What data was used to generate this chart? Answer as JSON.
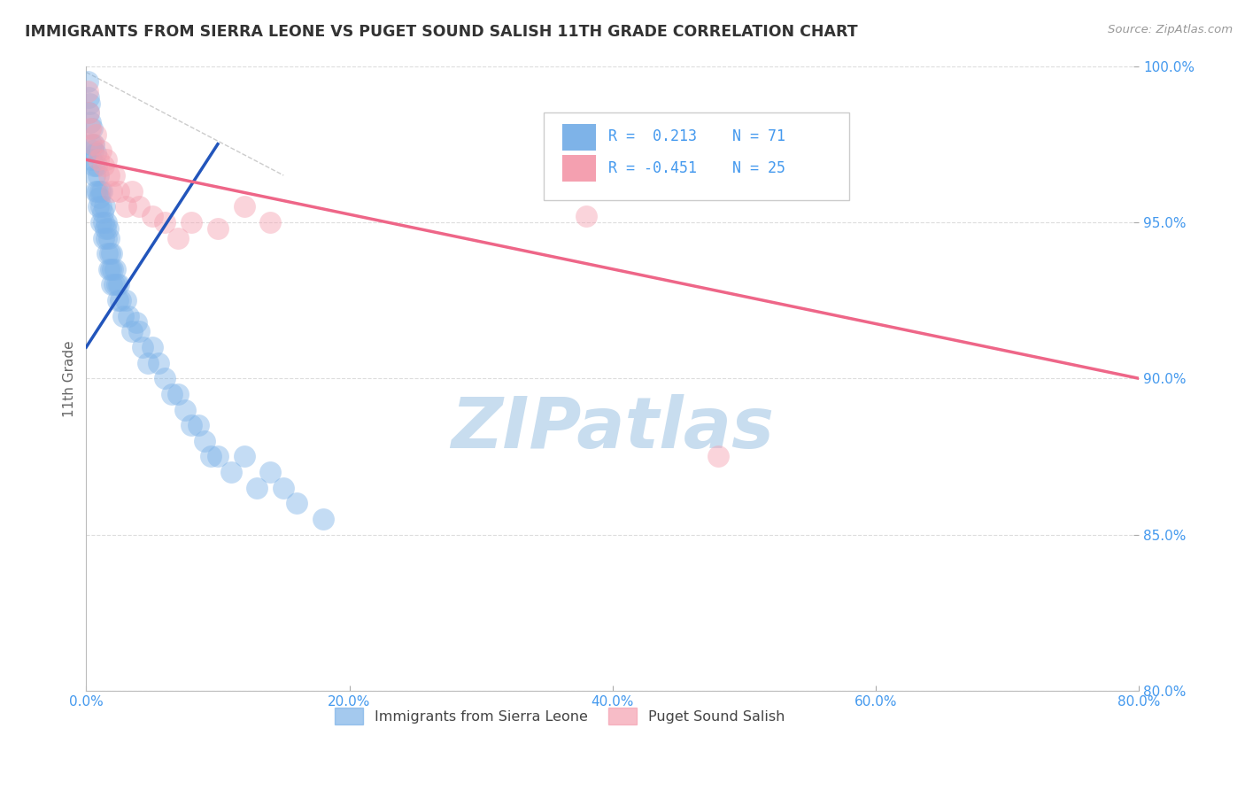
{
  "title": "IMMIGRANTS FROM SIERRA LEONE VS PUGET SOUND SALISH 11TH GRADE CORRELATION CHART",
  "source": "Source: ZipAtlas.com",
  "ylabel": "11th Grade",
  "xlim": [
    0.0,
    80.0
  ],
  "ylim": [
    80.0,
    100.0
  ],
  "xticks": [
    0.0,
    20.0,
    40.0,
    60.0,
    80.0
  ],
  "yticks": [
    80.0,
    85.0,
    90.0,
    95.0,
    100.0
  ],
  "color_blue": "#7EB3E8",
  "color_pink": "#F4A0B0",
  "color_trend_blue": "#2255BB",
  "color_trend_pink": "#EE6688",
  "watermark": "ZIPatlas",
  "watermark_color": "#C8DDEF",
  "background_color": "#FFFFFF",
  "title_color": "#333333",
  "axis_label_color": "#666666",
  "tick_label_color": "#4499EE",
  "grid_color": "#DDDDDD",
  "blue_scatter_x": [
    0.1,
    0.15,
    0.2,
    0.25,
    0.3,
    0.35,
    0.4,
    0.45,
    0.5,
    0.55,
    0.6,
    0.65,
    0.7,
    0.75,
    0.8,
    0.85,
    0.9,
    0.95,
    1.0,
    1.05,
    1.1,
    1.15,
    1.2,
    1.25,
    1.3,
    1.35,
    1.4,
    1.45,
    1.5,
    1.55,
    1.6,
    1.65,
    1.7,
    1.75,
    1.8,
    1.85,
    1.9,
    1.95,
    2.0,
    2.1,
    2.2,
    2.3,
    2.4,
    2.5,
    2.6,
    2.8,
    3.0,
    3.2,
    3.5,
    3.8,
    4.0,
    4.3,
    4.7,
    5.0,
    5.5,
    6.0,
    6.5,
    7.0,
    7.5,
    8.0,
    8.5,
    9.0,
    9.5,
    10.0,
    11.0,
    12.0,
    13.0,
    14.0,
    15.0,
    16.0,
    18.0
  ],
  "blue_scatter_y": [
    99.5,
    99.0,
    98.5,
    98.8,
    98.2,
    97.5,
    97.0,
    98.0,
    97.3,
    96.8,
    97.5,
    96.5,
    96.0,
    97.2,
    96.8,
    96.0,
    95.5,
    96.5,
    95.8,
    96.0,
    95.5,
    95.0,
    96.0,
    95.3,
    95.0,
    94.5,
    95.5,
    94.8,
    95.0,
    94.5,
    94.0,
    94.8,
    93.5,
    94.5,
    94.0,
    93.5,
    93.0,
    94.0,
    93.5,
    93.0,
    93.5,
    93.0,
    92.5,
    93.0,
    92.5,
    92.0,
    92.5,
    92.0,
    91.5,
    91.8,
    91.5,
    91.0,
    90.5,
    91.0,
    90.5,
    90.0,
    89.5,
    89.5,
    89.0,
    88.5,
    88.5,
    88.0,
    87.5,
    87.5,
    87.0,
    87.5,
    86.5,
    87.0,
    86.5,
    86.0,
    85.5
  ],
  "pink_scatter_x": [
    0.1,
    0.2,
    0.3,
    0.5,
    0.7,
    0.9,
    1.1,
    1.3,
    1.5,
    1.7,
    1.9,
    2.1,
    2.5,
    3.0,
    3.5,
    4.0,
    5.0,
    6.0,
    7.0,
    8.0,
    10.0,
    12.0,
    14.0,
    38.0,
    48.0
  ],
  "pink_scatter_y": [
    99.2,
    98.5,
    98.0,
    97.5,
    97.8,
    97.0,
    97.3,
    96.8,
    97.0,
    96.5,
    96.0,
    96.5,
    96.0,
    95.5,
    96.0,
    95.5,
    95.2,
    95.0,
    94.5,
    95.0,
    94.8,
    95.5,
    95.0,
    95.2,
    87.5
  ],
  "blue_trend_x": [
    0.0,
    10.0
  ],
  "blue_trend_y": [
    91.0,
    97.5
  ],
  "pink_trend_x": [
    0.0,
    80.0
  ],
  "pink_trend_y": [
    97.0,
    90.0
  ],
  "ref_line_x": [
    0.0,
    15.0
  ],
  "ref_line_y": [
    99.8,
    96.5
  ]
}
